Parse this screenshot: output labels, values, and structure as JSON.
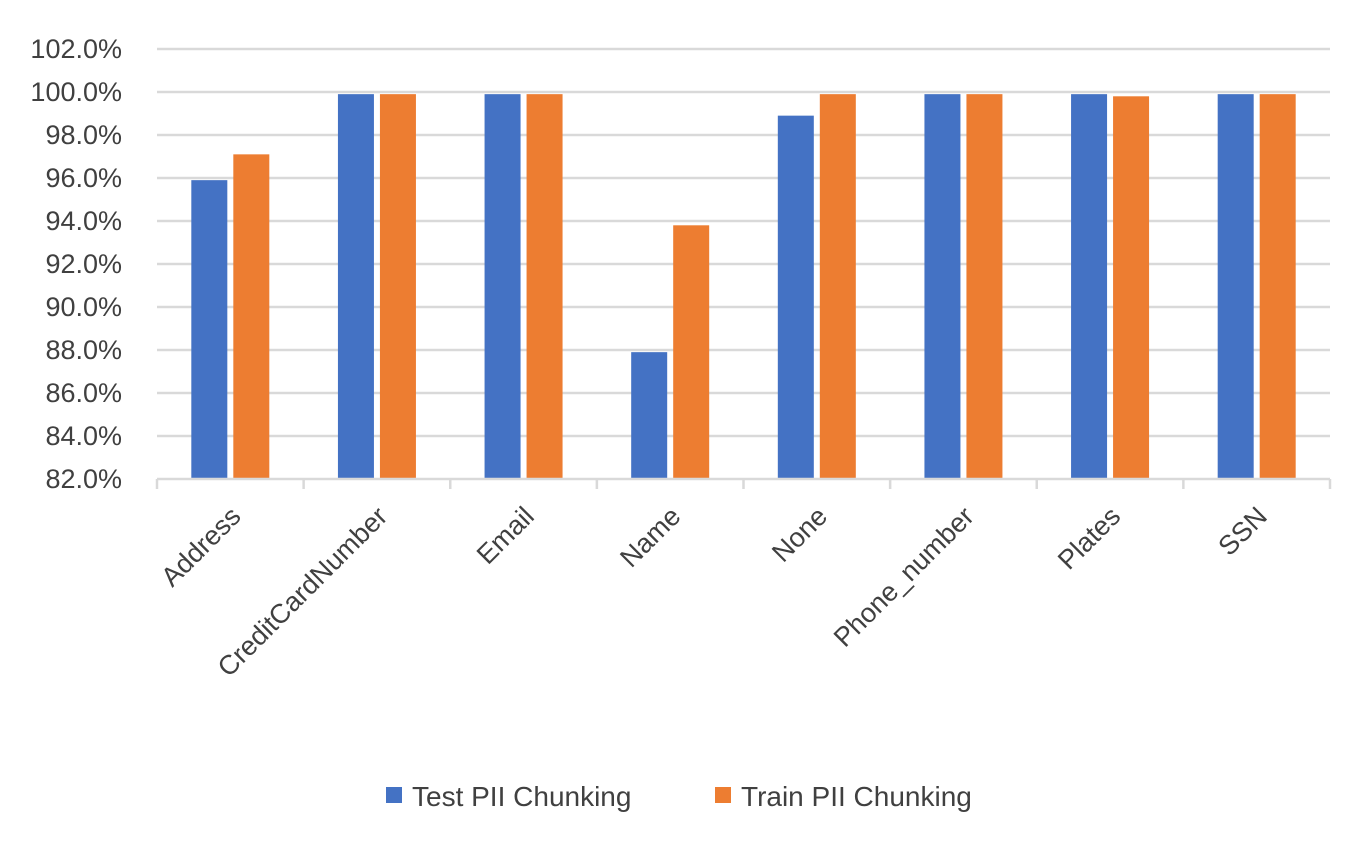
{
  "chart_data": {
    "type": "bar",
    "categories": [
      "Address",
      "CreditCardNumber",
      "Email",
      "Name",
      "None",
      "Phone_number",
      "Plates",
      "SSN"
    ],
    "series": [
      {
        "name": "Test PII Chunking",
        "color": "#4472C4",
        "values": [
          95.9,
          99.9,
          99.9,
          87.9,
          98.9,
          99.9,
          99.9,
          99.9
        ]
      },
      {
        "name": "Train PII Chunking",
        "color": "#ED7D31",
        "values": [
          97.1,
          99.9,
          99.9,
          93.8,
          99.9,
          99.9,
          99.8,
          99.9
        ]
      }
    ],
    "title": "",
    "xlabel": "",
    "ylabel": "",
    "ylim": [
      82,
      102
    ],
    "yticks": [
      82,
      84,
      86,
      88,
      90,
      92,
      94,
      96,
      98,
      100,
      102
    ],
    "ytick_labels": [
      "82.0%",
      "84.0%",
      "86.0%",
      "88.0%",
      "90.0%",
      "92.0%",
      "94.0%",
      "96.0%",
      "98.0%",
      "100.0%",
      "102.0%"
    ],
    "grid": true,
    "legend_position": "bottom"
  }
}
